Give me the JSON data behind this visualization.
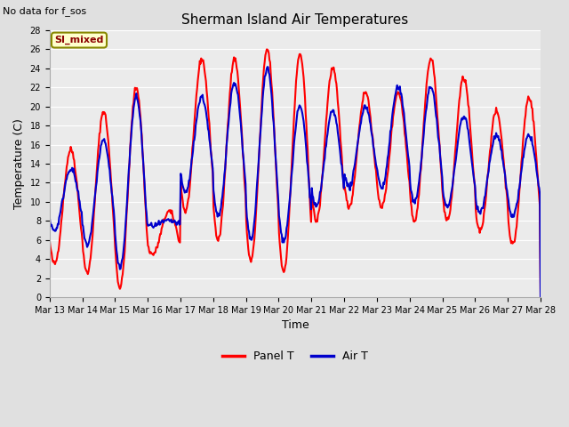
{
  "title": "Sherman Island Air Temperatures",
  "xlabel": "Time",
  "ylabel": "Temperature (C)",
  "ylim": [
    0,
    28
  ],
  "background_color": "#e0e0e0",
  "plot_bg_color": "#ebebeb",
  "panel_T_color": "#ff0000",
  "air_T_color": "#0000cc",
  "annotation_text": "No data for f_sos",
  "legend_label_text": "SI_mixed",
  "legend_label_bg": "#ffffcc",
  "legend_label_border": "#888800",
  "x_tick_labels": [
    "Mar 13",
    "Mar 14",
    "Mar 15",
    "Mar 16",
    "Mar 17",
    "Mar 18",
    "Mar 19",
    "Mar 20",
    "Mar 21",
    "Mar 22",
    "Mar 23",
    "Mar 24",
    "Mar 25",
    "Mar 26",
    "Mar 27",
    "Mar 28"
  ],
  "yticks": [
    0,
    2,
    4,
    6,
    8,
    10,
    12,
    14,
    16,
    18,
    20,
    22,
    24,
    26,
    28
  ],
  "panel_T_lw": 1.5,
  "air_T_lw": 1.5,
  "title_fontsize": 11,
  "axis_fontsize": 9,
  "tick_fontsize": 7,
  "annot_fontsize": 8,
  "legend_fontsize": 9,
  "si_label_fontsize": 8,
  "panel_mins": [
    3.5,
    2.5,
    1.0,
    4.5,
    9.0,
    6.0,
    3.8,
    2.7,
    8.0,
    9.5,
    9.5,
    8.0,
    8.0,
    7.0,
    5.5
  ],
  "panel_maxs": [
    15.5,
    19.5,
    22.0,
    9.0,
    25.0,
    25.0,
    26.0,
    25.5,
    24.0,
    21.5,
    21.5,
    25.0,
    23.0,
    19.5,
    21.0
  ],
  "air_mins": [
    7.0,
    5.5,
    3.0,
    7.5,
    11.0,
    8.5,
    6.0,
    6.0,
    9.5,
    11.5,
    11.5,
    10.0,
    9.5,
    9.0,
    8.5
  ],
  "air_maxs": [
    13.5,
    16.5,
    21.0,
    8.0,
    21.0,
    22.5,
    24.0,
    20.0,
    19.5,
    20.0,
    22.0,
    22.0,
    19.0,
    17.0,
    17.0
  ]
}
